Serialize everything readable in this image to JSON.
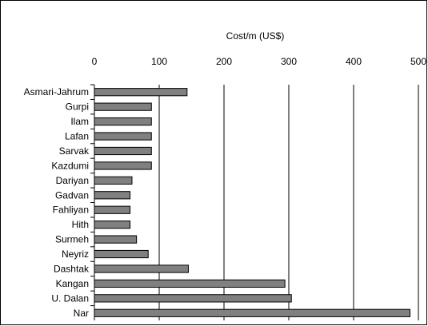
{
  "chart_data": {
    "type": "bar",
    "orientation": "horizontal",
    "title": "",
    "xlabel": "Cost/m (US$)",
    "ylabel": "",
    "xlim": [
      0,
      500
    ],
    "xticks": [
      0,
      100,
      200,
      300,
      400,
      500
    ],
    "x_axis_position": "top",
    "grid": "vertical",
    "legend": "none",
    "categories": [
      "Asmari-Jahrum",
      "Gurpi",
      "Ilam",
      "Lafan",
      "Sarvak",
      "Kazdumi",
      "Dariyan",
      "Gadvan",
      "Fahliyan",
      "Hith",
      "Surmeh",
      "Neyriz",
      "Dashtak",
      "Kangan",
      "U. Dalan",
      "Nar"
    ],
    "values": [
      143,
      88,
      88,
      88,
      88,
      88,
      58,
      55,
      55,
      55,
      65,
      83,
      145,
      294,
      304,
      487
    ],
    "bar_color": "#808080"
  }
}
